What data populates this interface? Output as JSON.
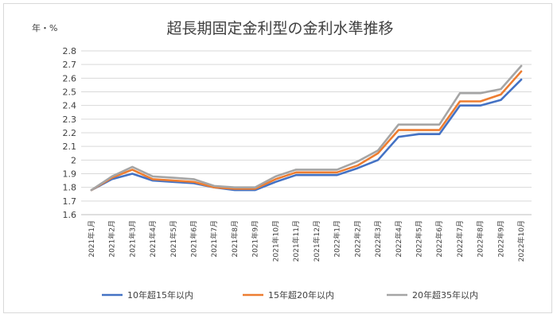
{
  "chart_data": {
    "type": "line",
    "title": "超長期固定金利型の金利水準推移",
    "unit_label": "年・%",
    "xlabel": "",
    "ylabel": "",
    "ylim": [
      1.6,
      2.8
    ],
    "yticks": [
      "1.6",
      "1.7",
      "1.8",
      "1.9",
      "2",
      "2.1",
      "2.2",
      "2.3",
      "2.4",
      "2.5",
      "2.6",
      "2.7",
      "2.8"
    ],
    "grid": true,
    "legend_position": "bottom",
    "categories": [
      "2021年1月",
      "2021年2月",
      "2021年3月",
      "2021年4月",
      "2021年5月",
      "2021年6月",
      "2021年7月",
      "2021年8月",
      "2021年9月",
      "2021年10月",
      "2021年11月",
      "2021年12月",
      "2022年1月",
      "2022年2月",
      "2022年3月",
      "2022年4月",
      "2022年5月",
      "2022年6月",
      "2022年7月",
      "2022年8月",
      "2022年9月",
      "2022年10月"
    ],
    "series": [
      {
        "name": "10年超15年以内",
        "color": "#4472c4",
        "values": [
          1.78,
          1.86,
          1.9,
          1.85,
          1.84,
          1.83,
          1.8,
          1.78,
          1.78,
          1.84,
          1.89,
          1.89,
          1.89,
          1.94,
          2.0,
          2.17,
          2.19,
          2.19,
          2.4,
          2.4,
          2.44,
          2.59
        ]
      },
      {
        "name": "15年超20年以内",
        "color": "#ed7d31",
        "values": [
          1.78,
          1.87,
          1.93,
          1.86,
          1.85,
          1.84,
          1.8,
          1.79,
          1.79,
          1.86,
          1.91,
          1.91,
          1.91,
          1.96,
          2.05,
          2.22,
          2.22,
          2.22,
          2.43,
          2.43,
          2.48,
          2.65
        ]
      },
      {
        "name": "20年超35年以内",
        "color": "#a5a5a5",
        "values": [
          1.78,
          1.88,
          1.95,
          1.88,
          1.87,
          1.86,
          1.81,
          1.8,
          1.8,
          1.88,
          1.93,
          1.93,
          1.93,
          1.99,
          2.07,
          2.26,
          2.26,
          2.26,
          2.49,
          2.49,
          2.52,
          2.69
        ]
      }
    ]
  }
}
